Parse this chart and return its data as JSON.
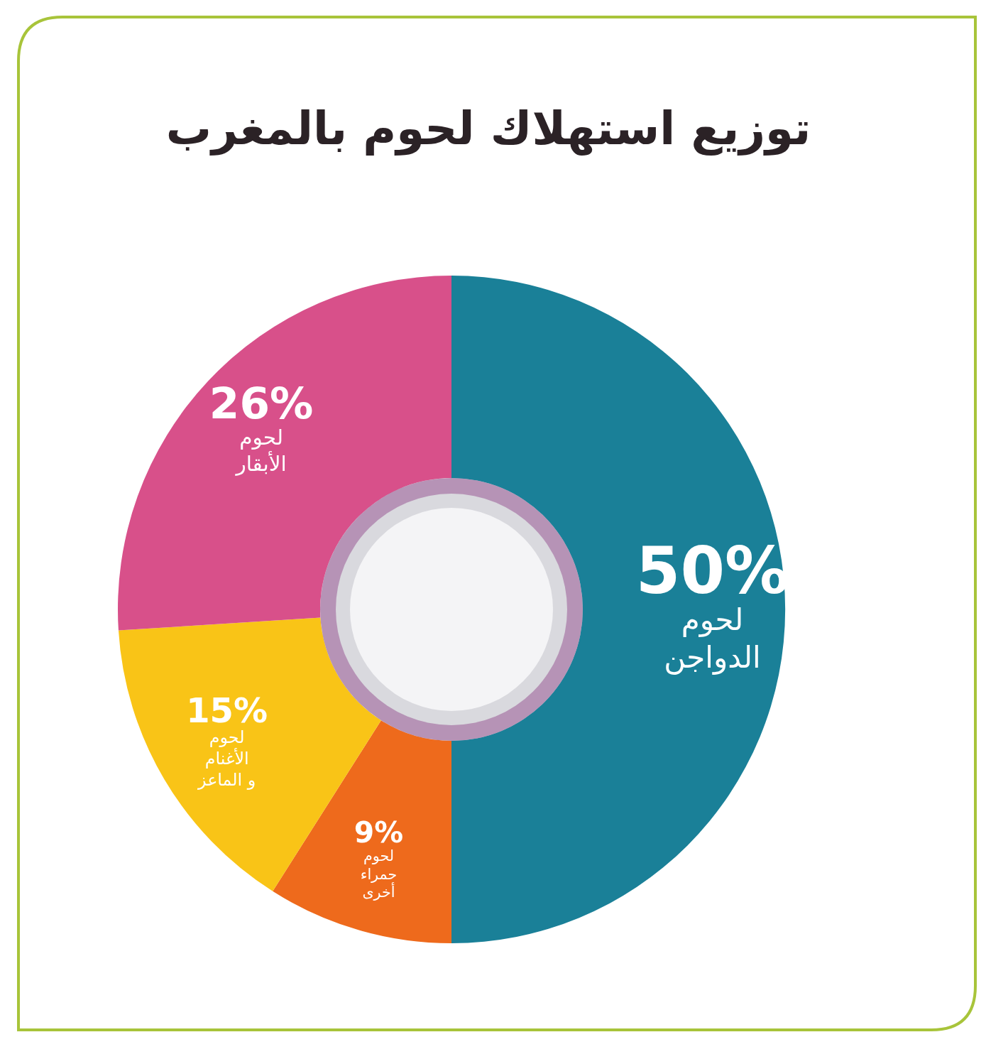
{
  "chart_data": {
    "type": "donut",
    "title": "توزيع استهلاك لحوم بالمغرب",
    "categories": [
      "لحوم الدواجن",
      "لحوم حمراء أخرى",
      "لحوم الأغنام و الماعز",
      "لحوم الأبقار"
    ],
    "values": [
      50,
      9,
      15,
      26
    ],
    "colors": [
      "#1a8098",
      "#ee6a1c",
      "#f9c417",
      "#d8508a"
    ],
    "value_labels": [
      "50%",
      "9%",
      "15%",
      "26%"
    ],
    "legend": false
  }
}
